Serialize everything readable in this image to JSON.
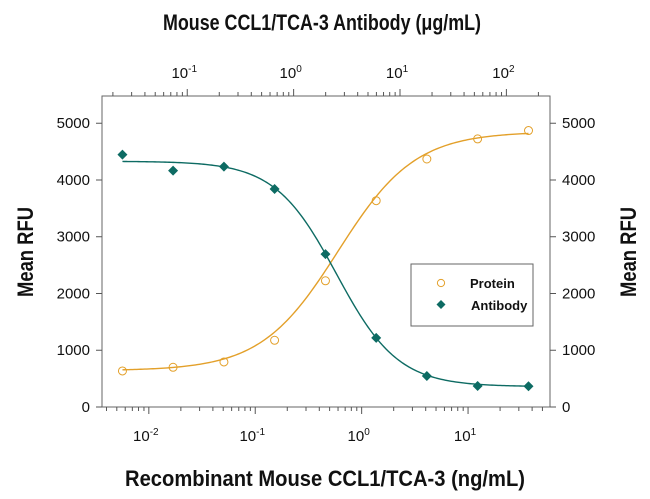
{
  "chart_data": {
    "type": "scatter",
    "title": "Mouse CCL1/TCA-3 Antibody (μg/mL)",
    "xlabel": "Recombinant Mouse CCL1/TCA-3 (ng/mL)",
    "x2label": "Mouse CCL1/TCA-3 Antibody (μg/mL)",
    "ylabel": "Mean RFU",
    "y2label": "Mean RFU",
    "xscale": "log",
    "xlim": [
      0.00363,
      58.9
    ],
    "x2lim": [
      0.0158,
      257
    ],
    "ylim": [
      0,
      5480
    ],
    "xticks": [
      {
        "v": 0.01,
        "e": "-2"
      },
      {
        "v": 0.1,
        "e": "-1"
      },
      {
        "v": 1,
        "e": "0"
      },
      {
        "v": 10,
        "e": "1"
      }
    ],
    "x2ticks": [
      {
        "v": 0.1,
        "e": "-1"
      },
      {
        "v": 1,
        "e": "0"
      },
      {
        "v": 10,
        "e": "1"
      },
      {
        "v": 100,
        "e": "2"
      }
    ],
    "yticks": [
      0,
      1000,
      2000,
      3000,
      4000,
      5000
    ],
    "grid": false,
    "legend_position": "center-right",
    "series": [
      {
        "name": "Protein",
        "marker": "open-circle",
        "color": "#e3a02a",
        "x": [
          0.00565,
          0.0169,
          0.0508,
          0.152,
          0.457,
          1.37,
          4.1,
          12.3,
          37
        ],
        "y": [
          635,
          700,
          794,
          1176,
          2224,
          3635,
          4370,
          4724,
          4871
        ],
        "fit": {
          "model": "4PL",
          "bottom": 640,
          "top": 4850,
          "ec50": 0.6,
          "hill": 1.2
        }
      },
      {
        "name": "Antibody",
        "marker": "filled-diamond",
        "color": "#0d6b63",
        "x": [
          0.00565,
          0.0169,
          0.0508,
          0.152,
          0.457,
          1.37,
          4.1,
          12.3,
          37
        ],
        "y": [
          4447,
          4165,
          4235,
          3841,
          2694,
          1218,
          547,
          371,
          365
        ],
        "fit": {
          "model": "4PL",
          "bottom": 360,
          "top": 4330,
          "ec50": 0.58,
          "hill": -1.5
        }
      }
    ]
  }
}
